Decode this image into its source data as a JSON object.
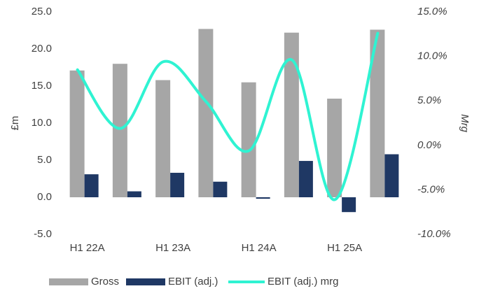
{
  "chart_data": {
    "type": "bar-line",
    "categories": [
      "H1 22A",
      null,
      "H1 23A",
      null,
      "H1 24A",
      null,
      "H1 25A",
      null
    ],
    "series": [
      {
        "name": "Gross",
        "color": "#a6a6a6",
        "type": "bar",
        "values": [
          17.1,
          18.0,
          15.8,
          22.7,
          15.5,
          22.2,
          13.3,
          22.6
        ]
      },
      {
        "name": "EBIT (adj.)",
        "color": "#1f3864",
        "type": "bar",
        "values": [
          3.1,
          0.8,
          3.3,
          2.1,
          -0.2,
          4.9,
          -2.0,
          5.8
        ]
      },
      {
        "name": "EBIT (adj.) mrg",
        "color": "#2ff3d2",
        "type": "line",
        "axis": "y2",
        "values": [
          8.5,
          1.9,
          9.4,
          4.9,
          -0.6,
          9.6,
          -6.1,
          12.6
        ]
      }
    ],
    "ylabel": "£m",
    "y2label": "Mrg",
    "ylim": [
      -5,
      25
    ],
    "yticks": [
      {
        "value": -5,
        "label": "-5.0"
      },
      {
        "value": 0,
        "label": "0.0"
      },
      {
        "value": 5,
        "label": "5.0"
      },
      {
        "value": 10,
        "label": "10.0"
      },
      {
        "value": 15,
        "label": "15.0"
      },
      {
        "value": 20,
        "label": "20.0"
      },
      {
        "value": 25,
        "label": "25.0"
      }
    ],
    "y2lim": [
      -10,
      15
    ],
    "y2ticks": [
      {
        "value": -10,
        "label": "-10.0%"
      },
      {
        "value": -5,
        "label": "-5.0%"
      },
      {
        "value": 0,
        "label": "0.0%"
      },
      {
        "value": 5,
        "label": "5.0%"
      },
      {
        "value": 10,
        "label": "10.0%"
      },
      {
        "value": 15,
        "label": "15.0%"
      }
    ],
    "legend": "bottom",
    "grid": false
  }
}
